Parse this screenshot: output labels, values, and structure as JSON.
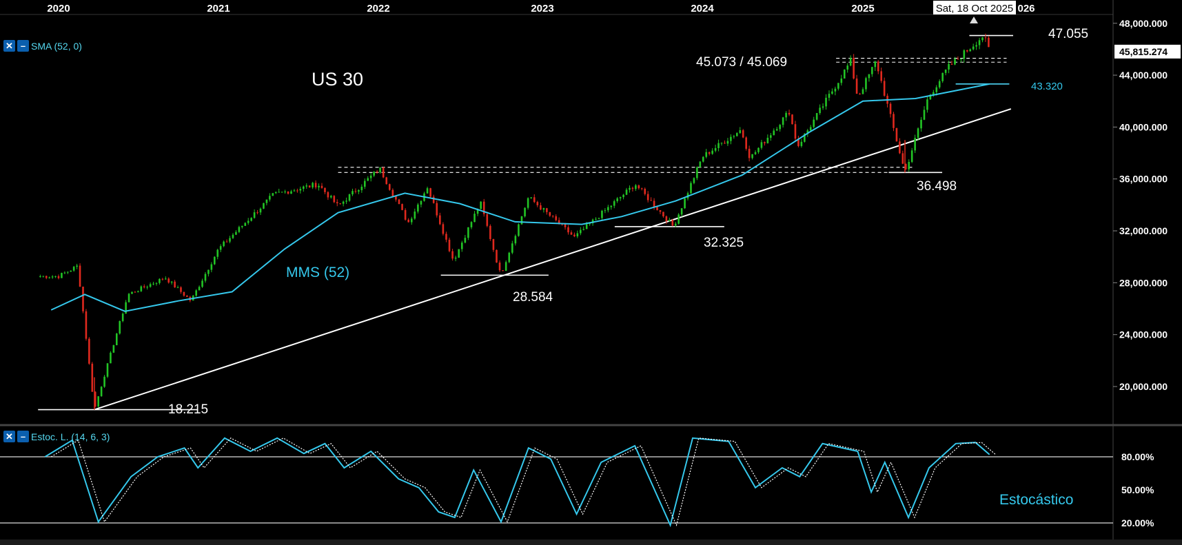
{
  "chart_data": {
    "type": "candlestick",
    "title": "US 30",
    "x_axis": {
      "labels": [
        "2020",
        "2021",
        "2022",
        "2023",
        "2024",
        "2025",
        "026"
      ],
      "crosshair_label": "Sat, 18 Oct 2025"
    },
    "y_axis": {
      "ticks": [
        20000,
        24000,
        28000,
        32000,
        36000,
        40000,
        44000,
        48000
      ],
      "tick_labels": [
        "20,000.000",
        "24,000.000",
        "28,000.000",
        "32,000.000",
        "36,000.000",
        "40,000.000",
        "44,000.000",
        "48,000.000"
      ],
      "range": [
        17000,
        48800
      ],
      "last_price_label": "45,815.274"
    },
    "indicator_label": "SMA (52, 0)",
    "sma_annotation": "MMS (52)",
    "price_points": [
      {
        "date": "2020-01-01",
        "value": 28500
      },
      {
        "date": "2020-02-14",
        "value": 29300
      },
      {
        "date": "2020-03-23",
        "value": 18215
      },
      {
        "date": "2020-06-08",
        "value": 27100
      },
      {
        "date": "2020-09-01",
        "value": 28400
      },
      {
        "date": "2020-10-30",
        "value": 26600
      },
      {
        "date": "2021-01-01",
        "value": 30600
      },
      {
        "date": "2021-05-07",
        "value": 34800
      },
      {
        "date": "2021-08-16",
        "value": 35600
      },
      {
        "date": "2021-10-01",
        "value": 33900
      },
      {
        "date": "2022-01-04",
        "value": 36800
      },
      {
        "date": "2022-03-08",
        "value": 32600
      },
      {
        "date": "2022-04-20",
        "value": 35400
      },
      {
        "date": "2022-06-17",
        "value": 29700
      },
      {
        "date": "2022-08-16",
        "value": 34200
      },
      {
        "date": "2022-09-30",
        "value": 28584
      },
      {
        "date": "2022-12-01",
        "value": 34600
      },
      {
        "date": "2023-03-15",
        "value": 31500
      },
      {
        "date": "2023-08-01",
        "value": 35600
      },
      {
        "date": "2023-10-27",
        "value": 32325
      },
      {
        "date": "2024-01-01",
        "value": 37700
      },
      {
        "date": "2024-03-29",
        "value": 39800
      },
      {
        "date": "2024-04-19",
        "value": 37600
      },
      {
        "date": "2024-07-17",
        "value": 41200
      },
      {
        "date": "2024-08-05",
        "value": 38500
      },
      {
        "date": "2024-12-04",
        "value": 45073
      },
      {
        "date": "2024-12-20",
        "value": 42300
      },
      {
        "date": "2025-01-31",
        "value": 45069
      },
      {
        "date": "2025-04-07",
        "value": 36498
      },
      {
        "date": "2025-05-30",
        "value": 42300
      },
      {
        "date": "2025-07-15",
        "value": 44600
      },
      {
        "date": "2025-10-03",
        "value": 47055
      },
      {
        "date": "2025-10-17",
        "value": 45815
      }
    ],
    "sma52": [
      {
        "date": "2019-12-15",
        "value": 25900
      },
      {
        "date": "2020-03-01",
        "value": 27100
      },
      {
        "date": "2020-06-01",
        "value": 25800
      },
      {
        "date": "2020-10-01",
        "value": 26600
      },
      {
        "date": "2021-02-01",
        "value": 27300
      },
      {
        "date": "2021-06-01",
        "value": 30600
      },
      {
        "date": "2021-10-01",
        "value": 33400
      },
      {
        "date": "2022-03-01",
        "value": 34900
      },
      {
        "date": "2022-07-01",
        "value": 34100
      },
      {
        "date": "2022-11-01",
        "value": 32700
      },
      {
        "date": "2023-04-01",
        "value": 32500
      },
      {
        "date": "2023-07-01",
        "value": 33100
      },
      {
        "date": "2023-11-01",
        "value": 34300
      },
      {
        "date": "2024-04-01",
        "value": 36300
      },
      {
        "date": "2024-09-01",
        "value": 39600
      },
      {
        "date": "2025-01-01",
        "value": 42000
      },
      {
        "date": "2025-05-01",
        "value": 42200
      },
      {
        "date": "2025-10-17",
        "value": 43320
      }
    ],
    "trendline": {
      "from": {
        "date": "2020-03-23",
        "value": 18215
      },
      "to": {
        "date": "2025-12-05",
        "value": 41400
      }
    },
    "annotations": [
      {
        "text": "18.215",
        "date": "2020-03-23",
        "value": 18215
      },
      {
        "text": "28.584",
        "date": "2022-09-30",
        "value": 28584
      },
      {
        "text": "32.325",
        "date": "2023-10-27",
        "value": 32325
      },
      {
        "text": "36.498",
        "date": "2025-04-07",
        "value": 36498
      },
      {
        "text": "45.073 / 45.069",
        "date": "2024-12-04",
        "value": 45073
      },
      {
        "text": "47.055",
        "date": "2025-10-03",
        "value": 47055
      },
      {
        "text": "43.320",
        "date": "2025-10-17",
        "value": 43320
      }
    ],
    "horizontal_lines": [
      {
        "value": 18215,
        "from": "2019-11-15",
        "to": "2020-11-15",
        "style": "solid"
      },
      {
        "value": 28584,
        "from": "2022-05-20",
        "to": "2023-01-15",
        "style": "solid"
      },
      {
        "value": 32325,
        "from": "2023-06-15",
        "to": "2024-02-20",
        "style": "solid"
      },
      {
        "value": 36498,
        "from": "2025-03-01",
        "to": "2025-07-01",
        "style": "solid"
      },
      {
        "value": 47055,
        "from": "2025-09-01",
        "to": "2025-12-10",
        "style": "solid"
      },
      {
        "value": 43320,
        "from": "2025-08-01",
        "to": "2025-12-01",
        "style": "solid"
      },
      {
        "value": 45300,
        "from": "2024-11-01",
        "to": "2025-11-25",
        "style": "dashed"
      },
      {
        "value": 45000,
        "from": "2024-11-01",
        "to": "2025-11-25",
        "style": "dashed"
      },
      {
        "value": 36900,
        "from": "2021-10-01",
        "to": "2025-04-25",
        "style": "dashed"
      },
      {
        "value": 36500,
        "from": "2021-10-01",
        "to": "2025-04-25",
        "style": "dashed"
      }
    ],
    "stochastic": {
      "label": "Estoc. L. (14, 6, 3)",
      "annotation": "Estocástico",
      "ticks": [
        80,
        50,
        20
      ],
      "tick_labels": [
        "80.00%",
        "50.00%",
        "20.00%"
      ],
      "reference_lines": [
        80,
        20
      ],
      "k_points": [
        {
          "date": "2019-12-01",
          "value": 80
        },
        {
          "date": "2020-02-01",
          "value": 95
        },
        {
          "date": "2020-04-01",
          "value": 21
        },
        {
          "date": "2020-06-15",
          "value": 62
        },
        {
          "date": "2020-08-15",
          "value": 80
        },
        {
          "date": "2020-10-15",
          "value": 88
        },
        {
          "date": "2020-11-15",
          "value": 70
        },
        {
          "date": "2021-01-15",
          "value": 97
        },
        {
          "date": "2021-03-15",
          "value": 85
        },
        {
          "date": "2021-05-15",
          "value": 97
        },
        {
          "date": "2021-07-15",
          "value": 83
        },
        {
          "date": "2021-09-01",
          "value": 92
        },
        {
          "date": "2021-10-15",
          "value": 70
        },
        {
          "date": "2021-12-15",
          "value": 85
        },
        {
          "date": "2022-02-15",
          "value": 60
        },
        {
          "date": "2022-04-01",
          "value": 52
        },
        {
          "date": "2022-05-15",
          "value": 30
        },
        {
          "date": "2022-06-20",
          "value": 25
        },
        {
          "date": "2022-08-01",
          "value": 68
        },
        {
          "date": "2022-10-01",
          "value": 21
        },
        {
          "date": "2022-12-01",
          "value": 88
        },
        {
          "date": "2023-01-20",
          "value": 78
        },
        {
          "date": "2023-03-20",
          "value": 28
        },
        {
          "date": "2023-05-15",
          "value": 75
        },
        {
          "date": "2023-07-31",
          "value": 90
        },
        {
          "date": "2023-10-20",
          "value": 18
        },
        {
          "date": "2023-12-10",
          "value": 97
        },
        {
          "date": "2024-03-01",
          "value": 94
        },
        {
          "date": "2024-05-01",
          "value": 52
        },
        {
          "date": "2024-07-01",
          "value": 70
        },
        {
          "date": "2024-08-10",
          "value": 62
        },
        {
          "date": "2024-10-01",
          "value": 92
        },
        {
          "date": "2024-12-20",
          "value": 85
        },
        {
          "date": "2025-01-20",
          "value": 48
        },
        {
          "date": "2025-02-20",
          "value": 75
        },
        {
          "date": "2025-04-15",
          "value": 25
        },
        {
          "date": "2025-06-01",
          "value": 70
        },
        {
          "date": "2025-08-01",
          "value": 92
        },
        {
          "date": "2025-09-15",
          "value": 93
        },
        {
          "date": "2025-10-17",
          "value": 82
        }
      ]
    }
  }
}
